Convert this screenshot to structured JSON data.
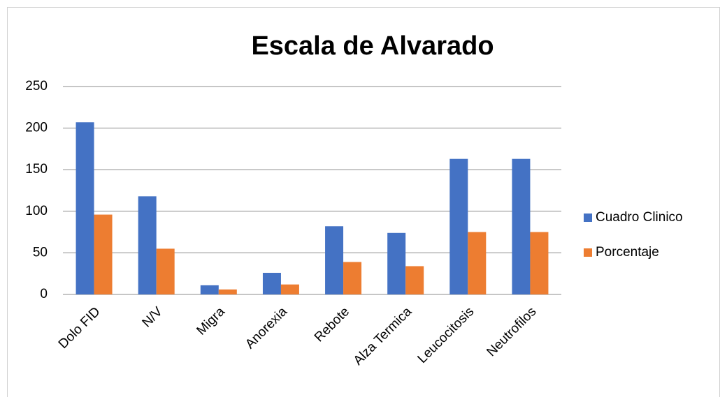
{
  "chart_data": {
    "type": "bar",
    "title": "Escala de Alvarado",
    "categories": [
      "Dolo FID",
      "N/V",
      "Migra",
      "Anorexia",
      "Rebote",
      "Alza Termica",
      "Leucocitosis",
      "Neutrofilos"
    ],
    "series": [
      {
        "name": "Cuadro Clinico",
        "color": "#4472c4",
        "values": [
          207,
          118,
          11,
          26,
          82,
          74,
          163,
          163
        ]
      },
      {
        "name": "Porcentaje",
        "color": "#ed7d31",
        "values": [
          96,
          55,
          6,
          12,
          39,
          34,
          75,
          75
        ]
      }
    ],
    "ylim": [
      0,
      250
    ],
    "yticks": [
      0,
      50,
      100,
      150,
      200,
      250
    ],
    "grid": true,
    "legend": "right"
  }
}
